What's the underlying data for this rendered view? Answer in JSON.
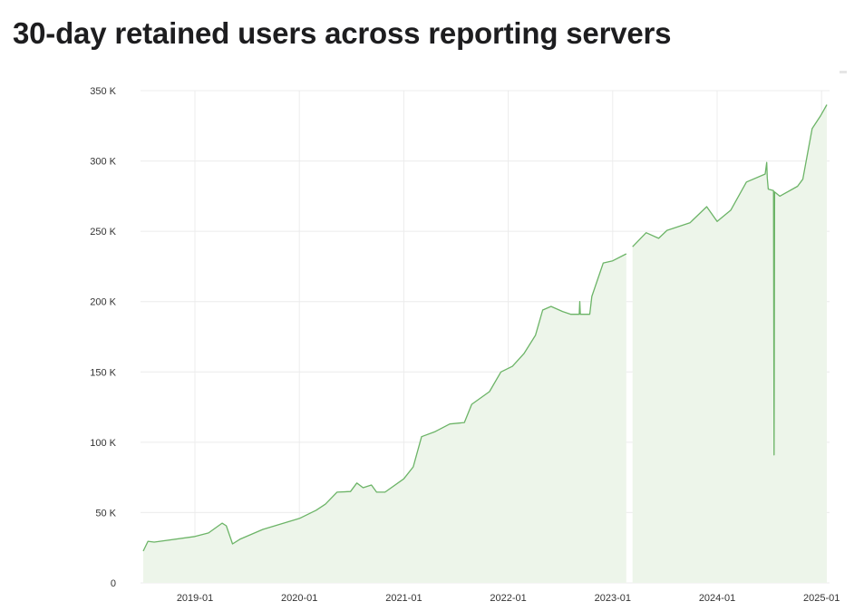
{
  "chart_data": {
    "type": "area",
    "title": "30-day retained users across reporting servers",
    "xlabel": "",
    "ylabel": "",
    "ylim": [
      0,
      350000
    ],
    "xlim": [
      2018.45,
      2025.07
    ],
    "grid": true,
    "y_ticks": [
      {
        "value": 0,
        "label": "0"
      },
      {
        "value": 50000,
        "label": "50 K"
      },
      {
        "value": 100000,
        "label": "100 K"
      },
      {
        "value": 150000,
        "label": "150 K"
      },
      {
        "value": 200000,
        "label": "200 K"
      },
      {
        "value": 250000,
        "label": "250 K"
      },
      {
        "value": 300000,
        "label": "300 K"
      },
      {
        "value": 350000,
        "label": "350 K"
      }
    ],
    "x_ticks": [
      {
        "value": 2019.0,
        "label": "2019-01"
      },
      {
        "value": 2020.0,
        "label": "2020-01"
      },
      {
        "value": 2021.0,
        "label": "2021-01"
      },
      {
        "value": 2022.0,
        "label": "2022-01"
      },
      {
        "value": 2023.0,
        "label": "2023-01"
      },
      {
        "value": 2024.0,
        "label": "2024-01"
      },
      {
        "value": 2025.0,
        "label": "2025-01"
      }
    ],
    "series": [
      {
        "name": "30-day retained users",
        "color": "#6cb467",
        "fill": "#edf5ea",
        "points": [
          [
            2018.505,
            22600
          ],
          [
            2018.55,
            29600
          ],
          [
            2018.61,
            29000
          ],
          [
            2019.0,
            33000
          ],
          [
            2019.13,
            35500
          ],
          [
            2019.26,
            42500
          ],
          [
            2019.3,
            40600
          ],
          [
            2019.36,
            27700
          ],
          [
            2019.43,
            31000
          ],
          [
            2019.65,
            38000
          ],
          [
            2020.0,
            45800
          ],
          [
            2020.16,
            51600
          ],
          [
            2020.25,
            56000
          ],
          [
            2020.36,
            64500
          ],
          [
            2020.49,
            65000
          ],
          [
            2020.55,
            71000
          ],
          [
            2020.61,
            67700
          ],
          [
            2020.69,
            69600
          ],
          [
            2020.74,
            64500
          ],
          [
            2020.82,
            64500
          ],
          [
            2021.0,
            74000
          ],
          [
            2021.09,
            82500
          ],
          [
            2021.17,
            104000
          ],
          [
            2021.3,
            107600
          ],
          [
            2021.44,
            113000
          ],
          [
            2021.58,
            114000
          ],
          [
            2021.65,
            127000
          ],
          [
            2021.82,
            136000
          ],
          [
            2021.93,
            150000
          ],
          [
            2022.04,
            154000
          ],
          [
            2022.15,
            163000
          ],
          [
            2022.26,
            176000
          ],
          [
            2022.33,
            194000
          ],
          [
            2022.41,
            196600
          ],
          [
            2022.52,
            193000
          ],
          [
            2022.6,
            191000
          ],
          [
            2022.68,
            191000
          ],
          [
            2022.685,
            200000
          ],
          [
            2022.69,
            191000
          ],
          [
            2022.78,
            191000
          ],
          [
            2022.8,
            203700
          ],
          [
            2022.91,
            227500
          ],
          [
            2023.0,
            229000
          ],
          [
            2023.13,
            234000
          ],
          [
            2023.17,
            null
          ],
          [
            2023.19,
            239000
          ],
          [
            2023.32,
            249000
          ],
          [
            2023.44,
            245000
          ],
          [
            2023.52,
            250700
          ],
          [
            2023.74,
            256000
          ],
          [
            2023.9,
            267500
          ],
          [
            2024.0,
            257000
          ],
          [
            2024.13,
            265000
          ],
          [
            2024.28,
            285000
          ],
          [
            2024.46,
            290700
          ],
          [
            2024.475,
            299000
          ],
          [
            2024.48,
            288000
          ],
          [
            2024.49,
            280000
          ],
          [
            2024.54,
            279000
          ],
          [
            2024.545,
            91000
          ],
          [
            2024.55,
            278000
          ],
          [
            2024.6,
            275000
          ],
          [
            2024.77,
            282000
          ],
          [
            2024.82,
            287000
          ],
          [
            2024.91,
            323000
          ],
          [
            2024.99,
            332000
          ],
          [
            2025.05,
            340000
          ]
        ]
      }
    ]
  }
}
